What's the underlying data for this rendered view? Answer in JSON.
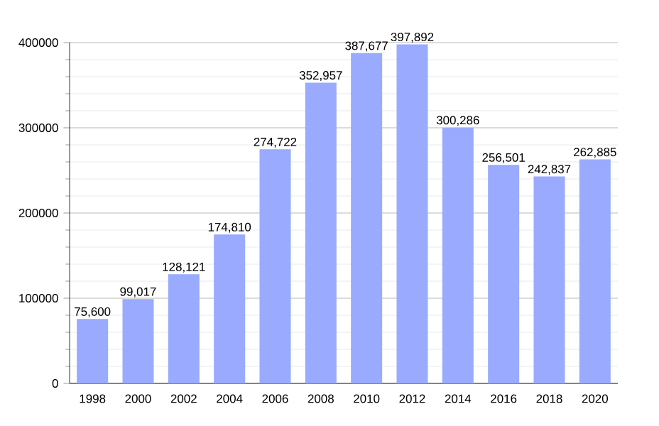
{
  "chart_data": {
    "type": "bar",
    "categories": [
      "1998",
      "2000",
      "2002",
      "2004",
      "2006",
      "2008",
      "2010",
      "2012",
      "2014",
      "2016",
      "2018",
      "2020"
    ],
    "values": [
      75600,
      99017,
      128121,
      174810,
      274722,
      352957,
      387677,
      397892,
      300286,
      256501,
      242837,
      262885
    ],
    "value_labels": [
      "75,600",
      "99,017",
      "128,121",
      "174,810",
      "274,722",
      "352,957",
      "387,677",
      "397,892",
      "300,286",
      "256,501",
      "242,837",
      "262,885"
    ],
    "color": "#99aaff",
    "ylim": [
      0,
      400000
    ],
    "yticks": [
      0,
      100000,
      200000,
      300000,
      400000
    ],
    "grid": "y"
  }
}
